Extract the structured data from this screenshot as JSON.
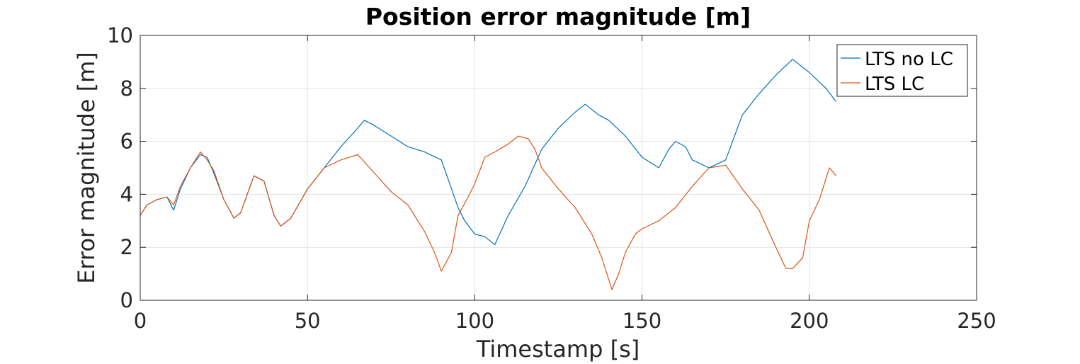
{
  "chart_data": {
    "type": "line",
    "title": "Position error magnitude [m]",
    "xlabel": "Timestamp [s]",
    "ylabel": "Error magnitude [m]",
    "xlim": [
      0,
      250
    ],
    "ylim": [
      0,
      10
    ],
    "xticks": [
      0,
      50,
      100,
      150,
      200,
      250
    ],
    "yticks": [
      0,
      2,
      4,
      6,
      8,
      10
    ],
    "xtick_labels": [
      "0",
      "50",
      "100",
      "150",
      "200",
      "250"
    ],
    "ytick_labels": [
      "0",
      "2",
      "4",
      "6",
      "8",
      "10"
    ],
    "grid": true,
    "legend_position": "top-right",
    "series": [
      {
        "name": "LTS no LC",
        "color": "#0072BD",
        "x": [
          0,
          2,
          5,
          8,
          10,
          12,
          15,
          18,
          20,
          22,
          25,
          28,
          30,
          34,
          37,
          40,
          42,
          45,
          50,
          55,
          60,
          65,
          67,
          70,
          75,
          80,
          85,
          90,
          95,
          97,
          100,
          103,
          106,
          110,
          115,
          120,
          125,
          130,
          133,
          137,
          140,
          145,
          150,
          155,
          158,
          160,
          163,
          165,
          170,
          175,
          180,
          185,
          190,
          195,
          200,
          205,
          208
        ],
        "y": [
          3.2,
          3.6,
          3.8,
          3.9,
          3.4,
          4.2,
          5.0,
          5.5,
          5.4,
          4.8,
          3.8,
          3.1,
          3.3,
          4.7,
          4.5,
          3.2,
          2.8,
          3.1,
          4.2,
          5.0,
          5.8,
          6.5,
          6.8,
          6.6,
          6.2,
          5.8,
          5.6,
          5.3,
          3.5,
          3.0,
          2.5,
          2.4,
          2.1,
          3.2,
          4.3,
          5.7,
          6.5,
          7.1,
          7.4,
          7.0,
          6.8,
          6.2,
          5.4,
          5.0,
          5.7,
          6.0,
          5.8,
          5.3,
          5.0,
          5.3,
          7.0,
          7.8,
          8.5,
          9.1,
          8.6,
          8.0,
          7.5
        ]
      },
      {
        "name": "LTS LC",
        "color": "#D95319",
        "x": [
          0,
          2,
          5,
          8,
          10,
          12,
          15,
          18,
          20,
          22,
          25,
          28,
          30,
          34,
          37,
          40,
          42,
          45,
          50,
          55,
          60,
          65,
          70,
          75,
          80,
          85,
          88,
          90,
          93,
          95,
          98,
          100,
          103,
          106,
          110,
          113,
          116,
          118,
          120,
          125,
          130,
          135,
          138,
          141,
          143,
          145,
          148,
          150,
          155,
          160,
          165,
          170,
          175,
          180,
          185,
          190,
          193,
          195,
          198,
          200,
          203,
          206,
          208
        ],
        "y": [
          3.2,
          3.6,
          3.8,
          3.9,
          3.6,
          4.3,
          5.0,
          5.6,
          5.3,
          4.9,
          3.8,
          3.1,
          3.3,
          4.7,
          4.5,
          3.2,
          2.8,
          3.1,
          4.2,
          5.0,
          5.3,
          5.5,
          4.8,
          4.1,
          3.6,
          2.6,
          1.8,
          1.1,
          1.8,
          3.2,
          3.9,
          4.4,
          5.4,
          5.6,
          5.9,
          6.2,
          6.1,
          5.7,
          5.0,
          4.2,
          3.5,
          2.5,
          1.6,
          0.4,
          1.0,
          1.8,
          2.5,
          2.7,
          3.0,
          3.5,
          4.3,
          5.0,
          5.1,
          4.2,
          3.4,
          2.0,
          1.2,
          1.2,
          1.6,
          3.0,
          3.8,
          5.0,
          4.7
        ]
      }
    ]
  }
}
